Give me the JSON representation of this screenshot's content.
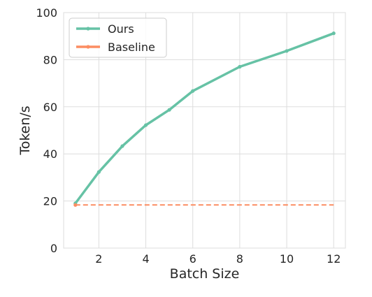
{
  "chart_data": {
    "type": "line",
    "xlabel": "Batch Size",
    "ylabel": "Token/s",
    "xlim": [
      0.5,
      12.5
    ],
    "ylim": [
      0,
      100
    ],
    "xticks": [
      2,
      4,
      6,
      8,
      10,
      12
    ],
    "yticks": [
      0,
      20,
      40,
      60,
      80,
      100
    ],
    "grid": true,
    "legend_position": "top-left",
    "series": [
      {
        "name": "Ours",
        "color": "#66c2a5",
        "style": "solid",
        "x": [
          1,
          2,
          3,
          4,
          5,
          6,
          8,
          10,
          12
        ],
        "y": [
          19.0,
          32.3,
          43.3,
          52.2,
          58.7,
          66.7,
          77.0,
          83.7,
          91.2
        ]
      },
      {
        "name": "Baseline",
        "color": "#fc8d62",
        "style": "dashed",
        "x": [
          1,
          2,
          3,
          4,
          5,
          6,
          8,
          10,
          12
        ],
        "y": [
          18.3,
          18.3,
          18.3,
          18.3,
          18.3,
          18.3,
          18.3,
          18.3,
          18.3
        ]
      }
    ]
  }
}
